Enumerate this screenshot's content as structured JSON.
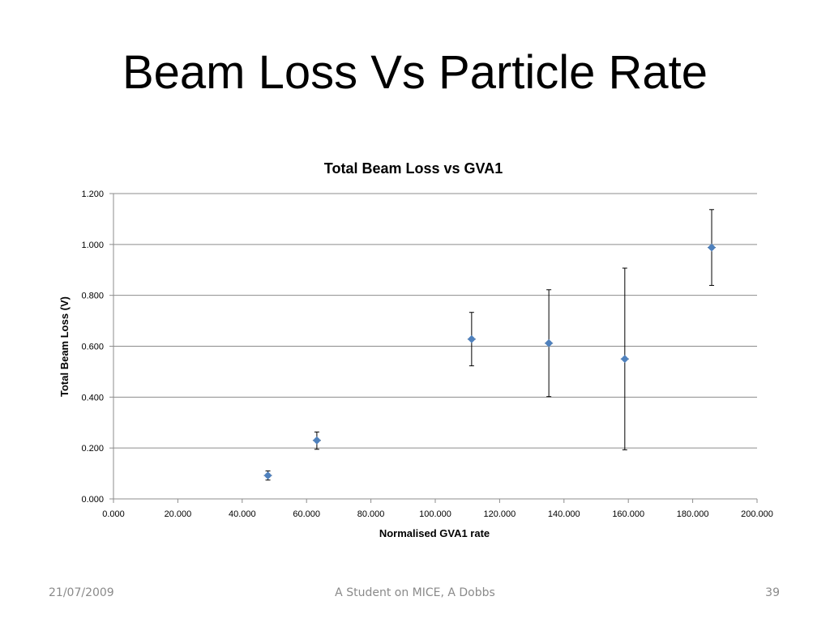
{
  "slide": {
    "title": "Beam Loss Vs Particle Rate"
  },
  "footer": {
    "date": "21/07/2009",
    "center": "A Student on MICE, A Dobbs",
    "page_number": "39"
  },
  "chart_data": {
    "type": "scatter",
    "title": "Total Beam Loss vs GVA1",
    "xlabel": "Normalised GVA1 rate",
    "ylabel": "Total Beam Loss (V)",
    "xlim": [
      0,
      200
    ],
    "ylim": [
      0,
      1.2
    ],
    "x_ticks": [
      "0.000",
      "20.000",
      "40.000",
      "60.000",
      "80.000",
      "100.000",
      "120.000",
      "140.000",
      "160.000",
      "180.000",
      "200.000"
    ],
    "y_ticks": [
      "0.000",
      "0.200",
      "0.400",
      "0.600",
      "0.800",
      "1.000",
      "1.200"
    ],
    "grid": "horizontal",
    "marker_color": "#4f81bd",
    "points": [
      {
        "x": 48.0,
        "y": 0.092,
        "y_err_low": 0.018,
        "y_err_high": 0.018
      },
      {
        "x": 63.2,
        "y": 0.23,
        "y_err_low": 0.035,
        "y_err_high": 0.033
      },
      {
        "x": 111.3,
        "y": 0.628,
        "y_err_low": 0.105,
        "y_err_high": 0.105
      },
      {
        "x": 135.3,
        "y": 0.612,
        "y_err_low": 0.21,
        "y_err_high": 0.21
      },
      {
        "x": 158.9,
        "y": 0.55,
        "y_err_low": 0.357,
        "y_err_high": 0.357
      },
      {
        "x": 185.9,
        "y": 0.988,
        "y_err_low": 0.149,
        "y_err_high": 0.149
      }
    ]
  }
}
